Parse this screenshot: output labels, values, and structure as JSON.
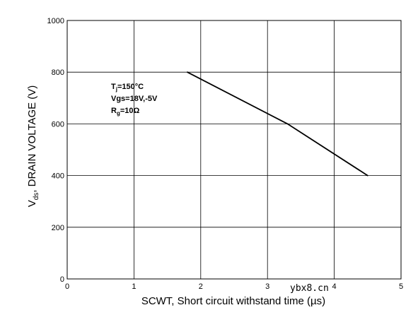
{
  "chart_data": {
    "type": "line",
    "xlabel": "SCWT, Short circuit withstand time (µs)",
    "ylabel_main": "V",
    "ylabel_sub": "ds",
    "ylabel_rest": ", DRAIN VOLTAGE (V)",
    "xlim": [
      0,
      5
    ],
    "ylim": [
      0,
      1000
    ],
    "x_ticks": [
      0,
      1,
      2,
      3,
      4,
      5
    ],
    "y_ticks": [
      0,
      200,
      400,
      600,
      800,
      1000
    ],
    "x_tick_labels": [
      "0",
      "1",
      "2",
      "3",
      "4",
      "5"
    ],
    "y_tick_labels": [
      "0",
      "200",
      "400",
      "600",
      "800",
      "1000"
    ],
    "grid": true,
    "series": [
      {
        "x": [
          1.8,
          3.3,
          4.5
        ],
        "y": [
          800,
          600,
          400
        ]
      }
    ],
    "annotations": {
      "tj_main": "T",
      "tj_sub": "j",
      "tj_rest": "=150°C",
      "vgs": "Vgs=18V,-5V",
      "rg_main": "R",
      "rg_sub": "g",
      "rg_rest": "=10Ω"
    },
    "watermark": "ybx8.cn"
  }
}
